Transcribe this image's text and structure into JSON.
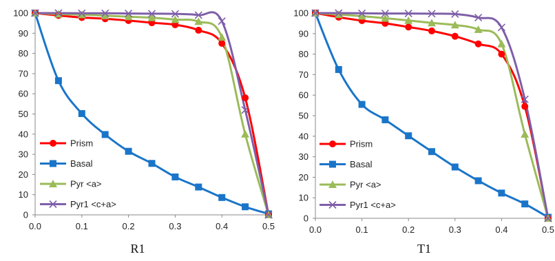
{
  "chart_data": [
    {
      "type": "line",
      "caption": "R1",
      "x": [
        0.0,
        0.05,
        0.1,
        0.15,
        0.2,
        0.25,
        0.3,
        0.35,
        0.4,
        0.45,
        0.5
      ],
      "xlim": [
        0.0,
        0.5
      ],
      "ylim": [
        0,
        100
      ],
      "xticks": [
        "0.0",
        "0.1",
        "0.2",
        "0.3",
        "0.4",
        "0.5"
      ],
      "yticks": [
        "0",
        "10",
        "20",
        "30",
        "40",
        "50",
        "60",
        "70",
        "80",
        "90",
        "100"
      ],
      "legend_position": "left",
      "series": [
        {
          "name": "Prism",
          "color": "#ff0000",
          "marker": "circle",
          "values": [
            100,
            98.8,
            97.8,
            97.2,
            96.3,
            95.2,
            94.2,
            91.5,
            85,
            58,
            0
          ]
        },
        {
          "name": "Basal",
          "color": "#1a75c9",
          "marker": "square",
          "values": [
            100,
            66.5,
            50.2,
            39.8,
            31.5,
            25.5,
            18.8,
            13.8,
            8.6,
            4,
            0.5
          ]
        },
        {
          "name": "Pyr <a>",
          "color": "#9bbb59",
          "marker": "triangle",
          "values": [
            100,
            99.5,
            99.2,
            98.7,
            98.2,
            97.7,
            96.8,
            95.8,
            88,
            40,
            0
          ]
        },
        {
          "name": "Pyr1 <c+a>",
          "color": "#7e5fa8",
          "marker": "x",
          "values": [
            100,
            100,
            99.9,
            99.9,
            99.8,
            99.7,
            99.6,
            99,
            96,
            52,
            0
          ]
        }
      ]
    },
    {
      "type": "line",
      "caption": "T1",
      "x": [
        0.0,
        0.05,
        0.1,
        0.15,
        0.2,
        0.25,
        0.3,
        0.35,
        0.4,
        0.45,
        0.5
      ],
      "xlim": [
        0.0,
        0.5
      ],
      "ylim": [
        0,
        100
      ],
      "xticks": [
        "0.0",
        "0.1",
        "0.2",
        "0.3",
        "0.4",
        "0.5"
      ],
      "yticks": [
        "0",
        "10",
        "20",
        "30",
        "40",
        "50",
        "60",
        "70",
        "80",
        "90",
        "100"
      ],
      "legend_position": "left",
      "series": [
        {
          "name": "Prism",
          "color": "#ff0000",
          "marker": "circle",
          "values": [
            100,
            98,
            96.3,
            95,
            93.2,
            91.3,
            88.7,
            85,
            80,
            54.5,
            0
          ]
        },
        {
          "name": "Basal",
          "color": "#1a75c9",
          "marker": "square",
          "values": [
            100,
            72.5,
            55.5,
            48,
            40.2,
            32.5,
            25,
            18.3,
            12.3,
            7,
            0.5
          ]
        },
        {
          "name": "Pyr <a>",
          "color": "#9bbb59",
          "marker": "triangle",
          "values": [
            100,
            99.3,
            98.5,
            97.5,
            96.4,
            95.2,
            94.2,
            92,
            85,
            41,
            0
          ]
        },
        {
          "name": "Pyr1 <c+a>",
          "color": "#7e5fa8",
          "marker": "x",
          "values": [
            100,
            100,
            99.9,
            99.8,
            99.8,
            99.7,
            99.5,
            97.8,
            93,
            58,
            0
          ]
        }
      ]
    }
  ]
}
